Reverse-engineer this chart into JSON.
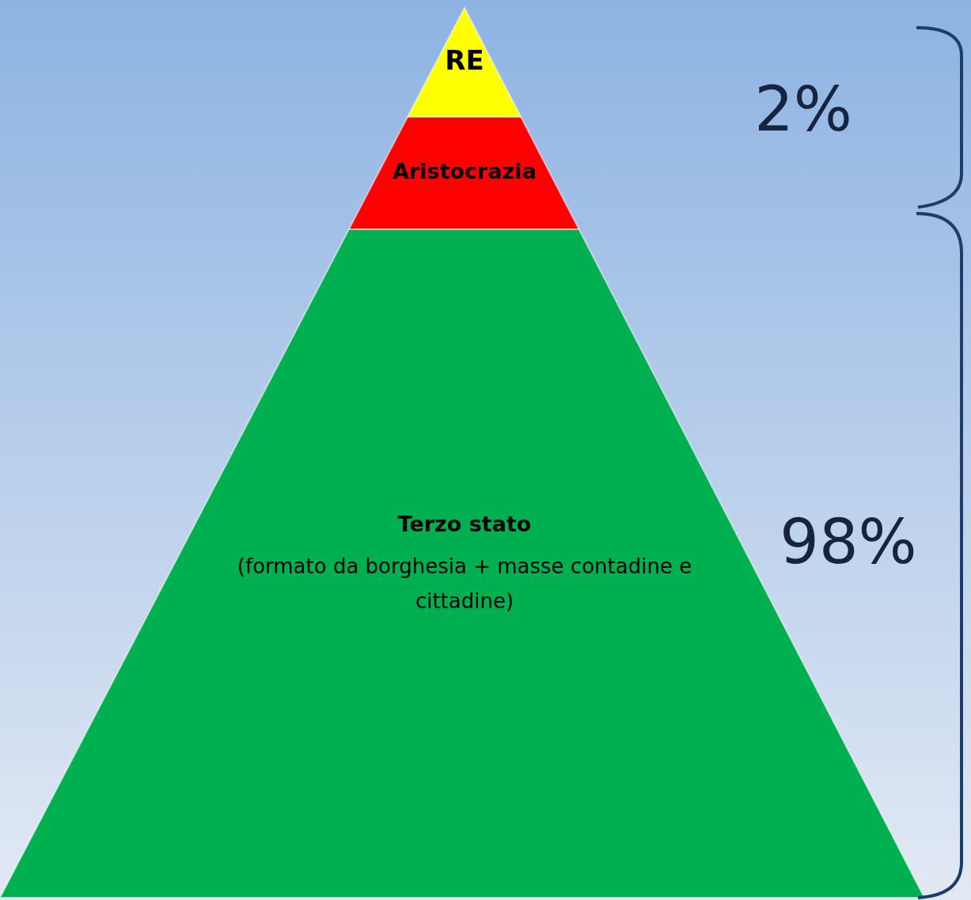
{
  "chart_data": {
    "type": "other",
    "categories": [
      null,
      null
    ],
    "values": [
      2,
      98
    ],
    "value_labels": [
      "2%",
      "98%"
    ],
    "colors": [
      "#17243f",
      "#17243f"
    ],
    "annotations": [
      "RE",
      "Aristocrazia",
      "Terzo stato",
      "(formato da borghesia + masse contadine e cittadine)"
    ]
  }
}
